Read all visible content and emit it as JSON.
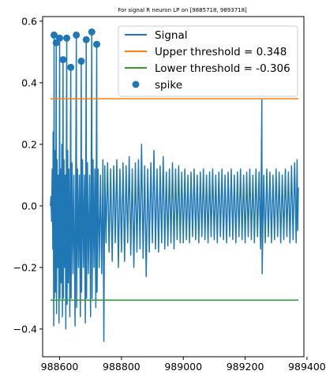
{
  "chart_data": {
    "type": "line",
    "title": "For signal R neuron LP on [9885718, 9893718]",
    "xlabel": "",
    "ylabel": "",
    "xlim": [
      988545,
      989390
    ],
    "ylim": [
      -0.49,
      0.615
    ],
    "x_ticks": [
      988600,
      988800,
      989000,
      989200,
      989400
    ],
    "x_tick_labels": [
      "988600",
      "988800",
      "989000",
      "989200",
      "989400"
    ],
    "y_ticks": [
      -0.4,
      -0.2,
      0.0,
      0.2,
      0.4,
      0.6
    ],
    "y_tick_labels": [
      "−0.4",
      "−0.2",
      "0.0",
      "0.2",
      "0.4",
      "0.6"
    ],
    "grid": false,
    "legend_position": "top-right",
    "colors": {
      "signal": "#1f77b4",
      "upper": "#ff7f0e",
      "lower": "#2ca02c",
      "spike": "#1f77b4"
    },
    "series": [
      {
        "name": "Signal",
        "kind": "line",
        "x_range": [
          988570,
          989372
        ],
        "samples": [
          [
            988570,
            0.0
          ],
          [
            988572,
            0.03
          ],
          [
            988574,
            -0.05
          ],
          [
            988576,
            0.12
          ],
          [
            988578,
            -0.14
          ],
          [
            988579,
            0.24
          ],
          [
            988581,
            -0.39
          ],
          [
            988582,
            0.555
          ],
          [
            988583,
            -0.3
          ],
          [
            988585,
            0.18
          ],
          [
            988587,
            -0.28
          ],
          [
            988589,
            0.53
          ],
          [
            988590,
            -0.35
          ],
          [
            988592,
            0.15
          ],
          [
            988594,
            -0.2
          ],
          [
            988596,
            0.1
          ],
          [
            988598,
            -0.38
          ],
          [
            988600,
            0.545
          ],
          [
            988601,
            -0.3
          ],
          [
            988603,
            0.12
          ],
          [
            988605,
            -0.25
          ],
          [
            988607,
            0.2
          ],
          [
            988609,
            -0.36
          ],
          [
            988611,
            0.475
          ],
          [
            988612,
            -0.3
          ],
          [
            988614,
            0.15
          ],
          [
            988616,
            -0.2
          ],
          [
            988618,
            0.1
          ],
          [
            988620,
            -0.4
          ],
          [
            988623,
            0.545
          ],
          [
            988624,
            -0.32
          ],
          [
            988626,
            0.18
          ],
          [
            988628,
            -0.25
          ],
          [
            988630,
            0.12
          ],
          [
            988633,
            -0.36
          ],
          [
            988636,
            0.45
          ],
          [
            988637,
            -0.3
          ],
          [
            988640,
            0.14
          ],
          [
            988643,
            -0.22
          ],
          [
            988646,
            0.1
          ],
          [
            988650,
            -0.39
          ],
          [
            988654,
            0.555
          ],
          [
            988655,
            -0.33
          ],
          [
            988658,
            0.12
          ],
          [
            988661,
            -0.2
          ],
          [
            988664,
            0.1
          ],
          [
            988667,
            -0.36
          ],
          [
            988670,
            0.47
          ],
          [
            988671,
            -0.28
          ],
          [
            988674,
            0.15
          ],
          [
            988677,
            -0.2
          ],
          [
            988680,
            0.1
          ],
          [
            988683,
            -0.38
          ],
          [
            988686,
            0.54
          ],
          [
            988687,
            -0.3
          ],
          [
            988690,
            0.14
          ],
          [
            988693,
            -0.22
          ],
          [
            988697,
            0.1
          ],
          [
            988700,
            -0.36
          ],
          [
            988704,
            0.565
          ],
          [
            988705,
            -0.3
          ],
          [
            988708,
            0.15
          ],
          [
            988711,
            -0.2
          ],
          [
            988714,
            0.12
          ],
          [
            988717,
            -0.33
          ],
          [
            988720,
            0.525
          ],
          [
            988721,
            -0.28
          ],
          [
            988724,
            0.12
          ],
          [
            988728,
            -0.2
          ],
          [
            988732,
            0.1
          ],
          [
            988736,
            -0.22
          ],
          [
            988740,
            0.15
          ],
          [
            988743,
            -0.44
          ],
          [
            988746,
            0.13
          ],
          [
            988750,
            -0.12
          ],
          [
            988755,
            0.14
          ],
          [
            988760,
            -0.15
          ],
          [
            988765,
            0.12
          ],
          [
            988770,
            -0.18
          ],
          [
            988775,
            0.13
          ],
          [
            988780,
            -0.12
          ],
          [
            988785,
            0.15
          ],
          [
            988790,
            -0.2
          ],
          [
            988795,
            0.12
          ],
          [
            988800,
            -0.15
          ],
          [
            988805,
            0.14
          ],
          [
            988810,
            -0.18
          ],
          [
            988815,
            0.13
          ],
          [
            988820,
            -0.12
          ],
          [
            988825,
            0.16
          ],
          [
            988830,
            -0.16
          ],
          [
            988835,
            0.12
          ],
          [
            988840,
            -0.2
          ],
          [
            988845,
            0.14
          ],
          [
            988850,
            -0.15
          ],
          [
            988855,
            0.15
          ],
          [
            988860,
            -0.14
          ],
          [
            988865,
            0.2
          ],
          [
            988870,
            -0.17
          ],
          [
            988875,
            0.13
          ],
          [
            988880,
            -0.23
          ],
          [
            988885,
            0.12
          ],
          [
            988890,
            -0.15
          ],
          [
            988895,
            0.14
          ],
          [
            988900,
            -0.12
          ],
          [
            988905,
            0.18
          ],
          [
            988910,
            -0.14
          ],
          [
            988915,
            0.12
          ],
          [
            988920,
            -0.15
          ],
          [
            988925,
            0.13
          ],
          [
            988930,
            -0.12
          ],
          [
            988935,
            0.16
          ],
          [
            988940,
            -0.14
          ],
          [
            988945,
            0.11
          ],
          [
            988950,
            -0.13
          ],
          [
            988955,
            0.12
          ],
          [
            988960,
            -0.12
          ],
          [
            988965,
            0.14
          ],
          [
            988970,
            -0.14
          ],
          [
            988975,
            0.12
          ],
          [
            988980,
            -0.11
          ],
          [
            988985,
            0.13
          ],
          [
            988990,
            -0.12
          ],
          [
            988995,
            0.11
          ],
          [
            989000,
            -0.12
          ],
          [
            989005,
            0.12
          ],
          [
            989010,
            -0.11
          ],
          [
            989015,
            0.1
          ],
          [
            989020,
            -0.12
          ],
          [
            989025,
            0.11
          ],
          [
            989030,
            -0.1
          ],
          [
            989035,
            0.12
          ],
          [
            989040,
            -0.11
          ],
          [
            989045,
            0.1
          ],
          [
            989050,
            -0.12
          ],
          [
            989055,
            0.11
          ],
          [
            989060,
            -0.1
          ],
          [
            989065,
            0.12
          ],
          [
            989070,
            -0.11
          ],
          [
            989075,
            0.1
          ],
          [
            989080,
            -0.12
          ],
          [
            989085,
            0.11
          ],
          [
            989090,
            -0.1
          ],
          [
            989095,
            0.12
          ],
          [
            989100,
            -0.11
          ],
          [
            989105,
            0.1
          ],
          [
            989110,
            -0.12
          ],
          [
            989115,
            0.11
          ],
          [
            989120,
            -0.1
          ],
          [
            989125,
            0.12
          ],
          [
            989130,
            -0.11
          ],
          [
            989135,
            0.1
          ],
          [
            989140,
            -0.12
          ],
          [
            989145,
            0.11
          ],
          [
            989150,
            -0.1
          ],
          [
            989155,
            0.12
          ],
          [
            989160,
            -0.11
          ],
          [
            989165,
            0.1
          ],
          [
            989170,
            -0.12
          ],
          [
            989175,
            0.11
          ],
          [
            989180,
            -0.1
          ],
          [
            989185,
            0.12
          ],
          [
            989190,
            -0.11
          ],
          [
            989195,
            0.1
          ],
          [
            989200,
            -0.12
          ],
          [
            989205,
            0.11
          ],
          [
            989210,
            -0.1
          ],
          [
            989215,
            0.12
          ],
          [
            989220,
            -0.11
          ],
          [
            989225,
            0.1
          ],
          [
            989230,
            -0.12
          ],
          [
            989235,
            0.12
          ],
          [
            989240,
            -0.1
          ],
          [
            989245,
            0.11
          ],
          [
            989250,
            -0.14
          ],
          [
            989254,
            0.345
          ],
          [
            989255,
            -0.22
          ],
          [
            989260,
            0.1
          ],
          [
            989265,
            -0.12
          ],
          [
            989270,
            0.12
          ],
          [
            989275,
            -0.1
          ],
          [
            989280,
            0.11
          ],
          [
            989285,
            -0.12
          ],
          [
            989290,
            0.1
          ],
          [
            989295,
            -0.11
          ],
          [
            989300,
            0.12
          ],
          [
            989305,
            -0.1
          ],
          [
            989310,
            0.11
          ],
          [
            989315,
            -0.12
          ],
          [
            989320,
            0.1
          ],
          [
            989325,
            -0.11
          ],
          [
            989330,
            0.12
          ],
          [
            989335,
            -0.1
          ],
          [
            989340,
            0.11
          ],
          [
            989345,
            -0.12
          ],
          [
            989350,
            0.13
          ],
          [
            989355,
            -0.11
          ],
          [
            989360,
            0.14
          ],
          [
            989365,
            -0.12
          ],
          [
            989368,
            0.15
          ],
          [
            989370,
            -0.08
          ],
          [
            989372,
            0.06
          ]
        ]
      },
      {
        "name": "Upper threshold = 0.348",
        "kind": "hline",
        "x": [
          988570,
          989372
        ],
        "y": 0.348
      },
      {
        "name": "Lower threshold = -0.306",
        "kind": "hline",
        "x": [
          988570,
          989372
        ],
        "y": -0.306
      },
      {
        "name": "spike",
        "kind": "scatter",
        "points": [
          [
            988582,
            0.555
          ],
          [
            988589,
            0.53
          ],
          [
            988600,
            0.545
          ],
          [
            988611,
            0.475
          ],
          [
            988623,
            0.545
          ],
          [
            988636,
            0.45
          ],
          [
            988654,
            0.555
          ],
          [
            988670,
            0.47
          ],
          [
            988686,
            0.54
          ],
          [
            988704,
            0.565
          ],
          [
            988720,
            0.525
          ]
        ]
      }
    ]
  }
}
